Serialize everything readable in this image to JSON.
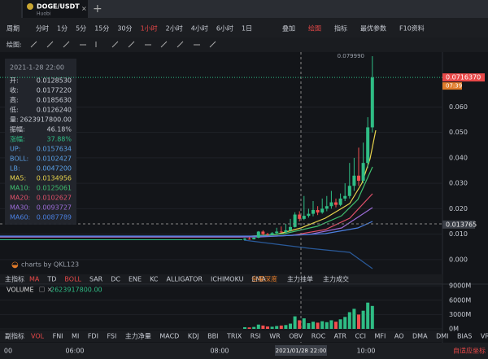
{
  "tab": {
    "symbol": "DOGE/USDT",
    "exchange": "Huobi"
  },
  "toolbar": {
    "period_label": "周期",
    "periods": [
      "分时",
      "1分",
      "5分",
      "15分",
      "30分",
      "1小时",
      "2小时",
      "4小时",
      "6小时",
      "1日"
    ],
    "active_period": 5,
    "tools": [
      "叠加",
      "绘图",
      "指标",
      "最优参数",
      "F10资料"
    ],
    "active_tool": 1
  },
  "drawing_label": "绘图:",
  "info": {
    "datetime": "2021-1-28 22:00",
    "rows": [
      {
        "label": "开:",
        "value": "0.0128530"
      },
      {
        "label": "收:",
        "value": "0.0177220"
      },
      {
        "label": "高:",
        "value": "0.0185630"
      },
      {
        "label": "低:",
        "value": "0.0126240"
      },
      {
        "label": "量:",
        "value": "2623917800.00"
      },
      {
        "label": "振幅:",
        "value": "46.18%"
      },
      {
        "label": "涨幅:",
        "value": "37.88%",
        "color": "#2fbd85"
      },
      {
        "label": "UP:",
        "value": "0.0157634",
        "color": "#5aa0e6"
      },
      {
        "label": "BOLL:",
        "value": "0.0102427",
        "color": "#5aa0e6"
      },
      {
        "label": "LB:",
        "value": "0.0047200",
        "color": "#5aa0e6"
      },
      {
        "label": "MA5:",
        "value": "0.0134956",
        "color": "#e8d44d"
      },
      {
        "label": "MA10:",
        "value": "0.0125061",
        "color": "#3fbf6f"
      },
      {
        "label": "MA20:",
        "value": "0.0102627",
        "color": "#e0506a"
      },
      {
        "label": "MA30:",
        "value": "0.0093727",
        "color": "#9b6bd6"
      },
      {
        "label": "MA60:",
        "value": "0.0087789",
        "color": "#4a7fe0"
      }
    ]
  },
  "price_chart": {
    "ylim": [
      -0.0055,
      0.0816
    ],
    "yticks": [
      {
        "value": 0.06,
        "label": "0.060"
      },
      {
        "value": 0.05,
        "label": "0.050"
      },
      {
        "value": 0.04,
        "label": "0.040"
      },
      {
        "value": 0.03,
        "label": "0.030"
      },
      {
        "value": 0.02,
        "label": "0.020"
      },
      {
        "value": 0.01,
        "label": "0.010"
      },
      {
        "value": 0,
        "label": "0.000"
      }
    ],
    "high_marker": {
      "value": 0.07999,
      "label": "0.079990"
    },
    "last_price": {
      "value": 0.071637,
      "label": "0.0716370",
      "countdown": "07:39"
    },
    "crosshair_price": {
      "value": 0.013765,
      "label": "0.013765"
    },
    "up_color": "#2fbd85",
    "down_color": "#f24e4e",
    "candles": {
      "open": [
        0.0078,
        0.0082,
        0.008,
        0.0086,
        0.011,
        0.01,
        0.0098,
        0.0104,
        0.011,
        0.0108,
        0.0115,
        0.0128,
        0.0177,
        0.016,
        0.0172,
        0.018,
        0.0195,
        0.0185,
        0.02,
        0.021,
        0.0225,
        0.0215,
        0.024,
        0.025,
        0.029,
        0.033,
        0.031,
        0.038,
        0.052
      ],
      "high": [
        0.0085,
        0.0088,
        0.009,
        0.0112,
        0.0115,
        0.0105,
        0.0108,
        0.0125,
        0.013,
        0.014,
        0.016,
        0.0186,
        0.019,
        0.025,
        0.02,
        0.023,
        0.021,
        0.024,
        0.025,
        0.027,
        0.024,
        0.026,
        0.03,
        0.038,
        0.04,
        0.044,
        0.046,
        0.056,
        0.08
      ],
      "low": [
        0.0076,
        0.0078,
        0.0079,
        0.0084,
        0.0095,
        0.0094,
        0.0095,
        0.01,
        0.0104,
        0.0105,
        0.011,
        0.0126,
        0.015,
        0.0155,
        0.0165,
        0.017,
        0.0175,
        0.018,
        0.019,
        0.02,
        0.0205,
        0.021,
        0.023,
        0.024,
        0.027,
        0.029,
        0.03,
        0.036,
        0.05
      ],
      "close": [
        0.0082,
        0.008,
        0.0086,
        0.011,
        0.01,
        0.0098,
        0.0104,
        0.011,
        0.0108,
        0.0115,
        0.0128,
        0.0177,
        0.016,
        0.0172,
        0.018,
        0.0195,
        0.0185,
        0.02,
        0.021,
        0.0225,
        0.0215,
        0.024,
        0.025,
        0.029,
        0.033,
        0.031,
        0.038,
        0.052,
        0.0716
      ]
    }
  },
  "watermark": "charts by QKL123",
  "main_indicators": {
    "label": "主指标",
    "items": [
      "MA",
      "TD",
      "BOLL",
      "SAR",
      "DC",
      "ENE",
      "KC",
      "ALLIGATOR",
      "ICHIMOKU",
      "EMA"
    ],
    "active": [
      0,
      2
    ],
    "extras": [
      "全量深度",
      "主力挂单",
      "主力成交"
    ]
  },
  "volume": {
    "title": "VOLUME",
    "value": "2623917800.00",
    "ylim": [
      0,
      9200
    ],
    "yticks": [
      {
        "value": 9000,
        "label": "9000M"
      },
      {
        "value": 6000,
        "label": "6000M"
      },
      {
        "value": 3000,
        "label": "3000M"
      },
      {
        "value": 0,
        "label": "0M"
      }
    ],
    "values": [
      350,
      300,
      400,
      900,
      700,
      500,
      450,
      600,
      700,
      800,
      1100,
      2624,
      1800,
      2200,
      1200,
      1500,
      1300,
      1600,
      1400,
      1800,
      1500,
      2000,
      2500,
      3500,
      4200,
      3000,
      3800,
      5500,
      4800
    ]
  },
  "sub_indicators": {
    "label": "副指标",
    "items": [
      "VOL",
      "FNI",
      "MI",
      "FDI",
      "FSI",
      "主力净量",
      "MACD",
      "KDJ",
      "BBI",
      "TRIX",
      "RSI",
      "WR",
      "OBV",
      "ROC",
      "ATR",
      "CCI",
      "MFI",
      "AO",
      "DMA",
      "DMI",
      "BIAS",
      "VR"
    ],
    "active": [
      0
    ]
  },
  "time_axis": {
    "labels": [
      "00",
      "06:00",
      "08:00",
      "10:00"
    ],
    "crosshair": "2021/01/28 22:00",
    "auto_scale": "自适应坐标"
  }
}
